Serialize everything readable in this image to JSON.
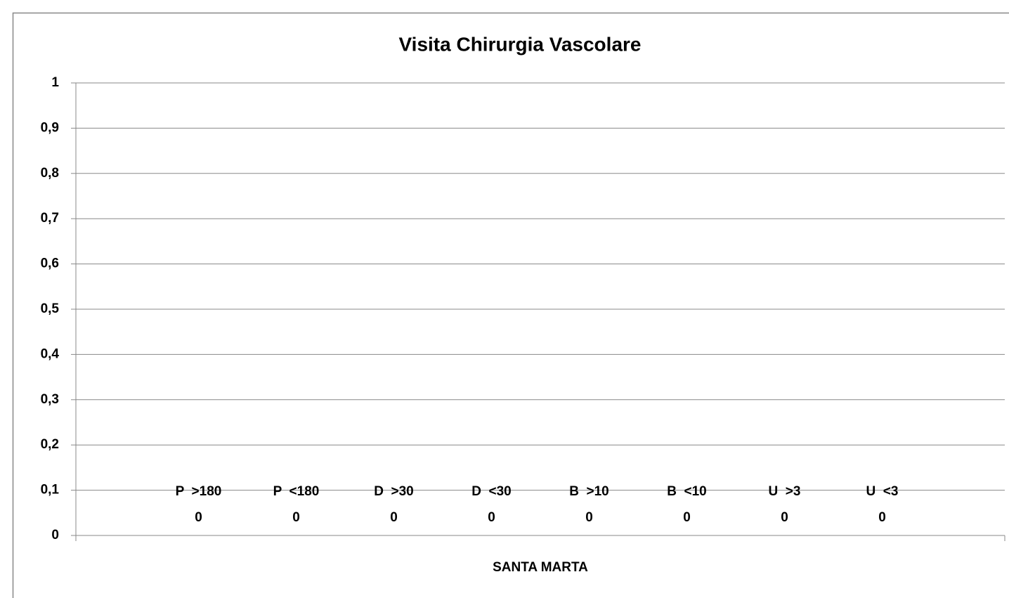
{
  "chart_data": {
    "type": "bar",
    "title": "Visita Chirurgia Vascolare",
    "categories": [
      "SANTA MARTA"
    ],
    "series": [
      {
        "name": "P  >180",
        "values": [
          0
        ]
      },
      {
        "name": "P  <180",
        "values": [
          0
        ]
      },
      {
        "name": "D  >30",
        "values": [
          0
        ]
      },
      {
        "name": "D  <30",
        "values": [
          0
        ]
      },
      {
        "name": "B  >10",
        "values": [
          0
        ]
      },
      {
        "name": "B  <10",
        "values": [
          0
        ]
      },
      {
        "name": "U  >3",
        "values": [
          0
        ]
      },
      {
        "name": "U  <3",
        "values": [
          0
        ]
      }
    ],
    "ylim": [
      0,
      1
    ],
    "yticks": [
      0,
      {
        "value": 0.1,
        "label": "0,1"
      },
      {
        "value": 0.2,
        "label": "0,2"
      },
      {
        "value": 0.3,
        "label": "0,3"
      },
      {
        "value": 0.4,
        "label": "0,4"
      },
      {
        "value": 0.5,
        "label": "0,5"
      },
      {
        "value": 0.6,
        "label": "0,6"
      },
      {
        "value": 0.7,
        "label": "0,7"
      },
      {
        "value": 0.8,
        "label": "0,8"
      },
      {
        "value": 0.9,
        "label": "0,9"
      },
      1
    ],
    "grid": true
  }
}
